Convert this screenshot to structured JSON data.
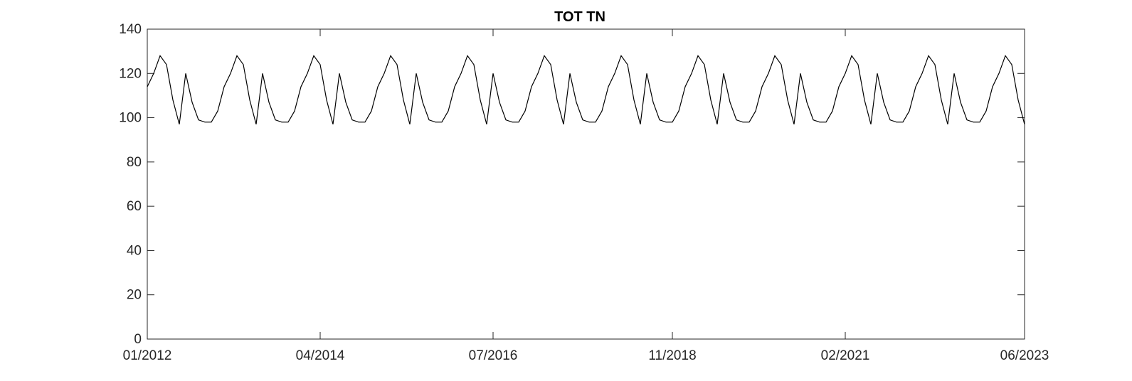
{
  "chart_data": {
    "type": "line",
    "title": "TOT TN",
    "xlabel": "",
    "ylabel": "",
    "x_start": "2012-01",
    "x_end": "2023-06",
    "xlim": [
      "2012-01",
      "2023-06"
    ],
    "ylim": [
      0,
      140
    ],
    "x_ticks": [
      "01/2012",
      "04/2014",
      "07/2016",
      "11/2018",
      "02/2021",
      "06/2023"
    ],
    "y_ticks": [
      0,
      20,
      40,
      60,
      80,
      100,
      120,
      140
    ],
    "grid": false,
    "series": [
      {
        "color": "#000000",
        "points": [
          [
            "2012-01",
            114
          ],
          [
            "2012-02",
            120
          ],
          [
            "2012-03",
            128
          ],
          [
            "2012-04",
            124
          ],
          [
            "2012-05",
            108
          ],
          [
            "2012-06",
            97
          ],
          [
            "2012-07",
            120
          ],
          [
            "2012-08",
            107
          ],
          [
            "2012-09",
            99
          ],
          [
            "2012-10",
            98
          ],
          [
            "2012-11",
            98
          ],
          [
            "2012-12",
            103
          ],
          [
            "2013-01",
            114
          ],
          [
            "2013-02",
            120
          ],
          [
            "2013-03",
            128
          ],
          [
            "2013-04",
            124
          ],
          [
            "2013-05",
            108
          ],
          [
            "2013-06",
            97
          ],
          [
            "2013-07",
            120
          ],
          [
            "2013-08",
            107
          ],
          [
            "2013-09",
            99
          ],
          [
            "2013-10",
            98
          ],
          [
            "2013-11",
            98
          ],
          [
            "2013-12",
            103
          ],
          [
            "2014-01",
            114
          ],
          [
            "2014-02",
            120
          ],
          [
            "2014-03",
            128
          ],
          [
            "2014-04",
            124
          ],
          [
            "2014-05",
            108
          ],
          [
            "2014-06",
            97
          ],
          [
            "2014-07",
            120
          ],
          [
            "2014-08",
            107
          ],
          [
            "2014-09",
            99
          ],
          [
            "2014-10",
            98
          ],
          [
            "2014-11",
            98
          ],
          [
            "2014-12",
            103
          ],
          [
            "2015-01",
            114
          ],
          [
            "2015-02",
            120
          ],
          [
            "2015-03",
            128
          ],
          [
            "2015-04",
            124
          ],
          [
            "2015-05",
            108
          ],
          [
            "2015-06",
            97
          ],
          [
            "2015-07",
            120
          ],
          [
            "2015-08",
            107
          ],
          [
            "2015-09",
            99
          ],
          [
            "2015-10",
            98
          ],
          [
            "2015-11",
            98
          ],
          [
            "2015-12",
            103
          ],
          [
            "2016-01",
            114
          ],
          [
            "2016-02",
            120
          ],
          [
            "2016-03",
            128
          ],
          [
            "2016-04",
            124
          ],
          [
            "2016-05",
            108
          ],
          [
            "2016-06",
            97
          ],
          [
            "2016-07",
            120
          ],
          [
            "2016-08",
            107
          ],
          [
            "2016-09",
            99
          ],
          [
            "2016-10",
            98
          ],
          [
            "2016-11",
            98
          ],
          [
            "2016-12",
            103
          ],
          [
            "2017-01",
            114
          ],
          [
            "2017-02",
            120
          ],
          [
            "2017-03",
            128
          ],
          [
            "2017-04",
            124
          ],
          [
            "2017-05",
            108
          ],
          [
            "2017-06",
            97
          ],
          [
            "2017-07",
            120
          ],
          [
            "2017-08",
            107
          ],
          [
            "2017-09",
            99
          ],
          [
            "2017-10",
            98
          ],
          [
            "2017-11",
            98
          ],
          [
            "2017-12",
            103
          ],
          [
            "2018-01",
            114
          ],
          [
            "2018-02",
            120
          ],
          [
            "2018-03",
            128
          ],
          [
            "2018-04",
            124
          ],
          [
            "2018-05",
            108
          ],
          [
            "2018-06",
            97
          ],
          [
            "2018-07",
            120
          ],
          [
            "2018-08",
            107
          ],
          [
            "2018-09",
            99
          ],
          [
            "2018-10",
            98
          ],
          [
            "2018-11",
            98
          ],
          [
            "2018-12",
            103
          ],
          [
            "2019-01",
            114
          ],
          [
            "2019-02",
            120
          ],
          [
            "2019-03",
            128
          ],
          [
            "2019-04",
            124
          ],
          [
            "2019-05",
            108
          ],
          [
            "2019-06",
            97
          ],
          [
            "2019-07",
            120
          ],
          [
            "2019-08",
            107
          ],
          [
            "2019-09",
            99
          ],
          [
            "2019-10",
            98
          ],
          [
            "2019-11",
            98
          ],
          [
            "2019-12",
            103
          ],
          [
            "2020-01",
            114
          ],
          [
            "2020-02",
            120
          ],
          [
            "2020-03",
            128
          ],
          [
            "2020-04",
            124
          ],
          [
            "2020-05",
            108
          ],
          [
            "2020-06",
            97
          ],
          [
            "2020-07",
            120
          ],
          [
            "2020-08",
            107
          ],
          [
            "2020-09",
            99
          ],
          [
            "2020-10",
            98
          ],
          [
            "2020-11",
            98
          ],
          [
            "2020-12",
            103
          ],
          [
            "2021-01",
            114
          ],
          [
            "2021-02",
            120
          ],
          [
            "2021-03",
            128
          ],
          [
            "2021-04",
            124
          ],
          [
            "2021-05",
            108
          ],
          [
            "2021-06",
            97
          ],
          [
            "2021-07",
            120
          ],
          [
            "2021-08",
            107
          ],
          [
            "2021-09",
            99
          ],
          [
            "2021-10",
            98
          ],
          [
            "2021-11",
            98
          ],
          [
            "2021-12",
            103
          ],
          [
            "2022-01",
            114
          ],
          [
            "2022-02",
            120
          ],
          [
            "2022-03",
            128
          ],
          [
            "2022-04",
            124
          ],
          [
            "2022-05",
            108
          ],
          [
            "2022-06",
            97
          ],
          [
            "2022-07",
            120
          ],
          [
            "2022-08",
            107
          ],
          [
            "2022-09",
            99
          ],
          [
            "2022-10",
            98
          ],
          [
            "2022-11",
            98
          ],
          [
            "2022-12",
            103
          ],
          [
            "2023-01",
            114
          ],
          [
            "2023-02",
            120
          ],
          [
            "2023-03",
            128
          ],
          [
            "2023-04",
            124
          ],
          [
            "2023-05",
            108
          ],
          [
            "2023-06",
            97
          ]
        ]
      }
    ]
  }
}
